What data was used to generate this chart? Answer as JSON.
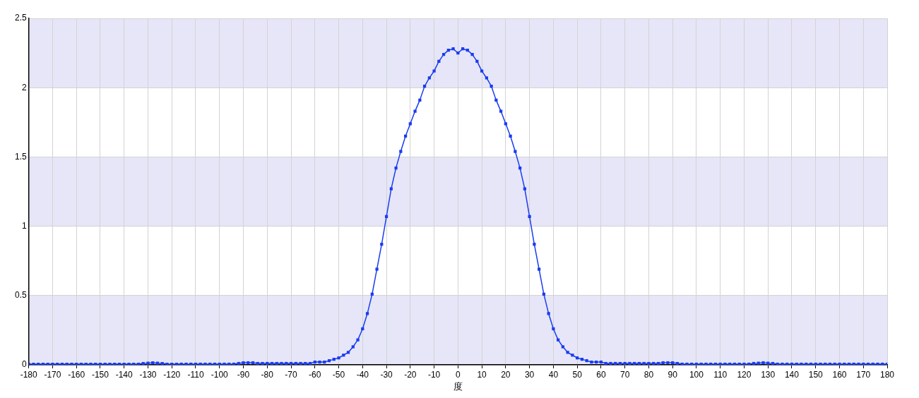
{
  "chart_data": {
    "type": "line",
    "xlabel": "度",
    "x": [
      -180,
      -178,
      -176,
      -174,
      -172,
      -170,
      -168,
      -166,
      -164,
      -162,
      -160,
      -158,
      -156,
      -154,
      -152,
      -150,
      -148,
      -146,
      -144,
      -142,
      -140,
      -138,
      -136,
      -134,
      -132,
      -130,
      -128,
      -126,
      -124,
      -122,
      -120,
      -118,
      -116,
      -114,
      -112,
      -110,
      -108,
      -106,
      -104,
      -102,
      -100,
      -98,
      -96,
      -94,
      -92,
      -90,
      -88,
      -86,
      -84,
      -82,
      -80,
      -78,
      -76,
      -74,
      -72,
      -70,
      -68,
      -66,
      -64,
      -62,
      -60,
      -58,
      -56,
      -54,
      -52,
      -50,
      -48,
      -46,
      -44,
      -42,
      -40,
      -38,
      -36,
      -34,
      -32,
      -30,
      -28,
      -26,
      -24,
      -22,
      -20,
      -18,
      -16,
      -14,
      -12,
      -10,
      -8,
      -6,
      -4,
      -2,
      0,
      2,
      4,
      6,
      8,
      10,
      12,
      14,
      16,
      18,
      20,
      22,
      24,
      26,
      28,
      30,
      32,
      34,
      36,
      38,
      40,
      42,
      44,
      46,
      48,
      50,
      52,
      54,
      56,
      58,
      60,
      62,
      64,
      66,
      68,
      70,
      72,
      74,
      76,
      78,
      80,
      82,
      84,
      86,
      88,
      90,
      92,
      94,
      96,
      98,
      100,
      102,
      104,
      106,
      108,
      110,
      112,
      114,
      116,
      118,
      120,
      122,
      124,
      126,
      128,
      130,
      132,
      134,
      136,
      138,
      140,
      142,
      144,
      146,
      148,
      150,
      152,
      154,
      156,
      158,
      160,
      162,
      164,
      166,
      168,
      170,
      172,
      174,
      176,
      178,
      180
    ],
    "series": [
      {
        "color": "#1a3cf0",
        "values": [
          0.005,
          0.005,
          0.005,
          0.005,
          0.005,
          0.005,
          0.005,
          0.005,
          0.005,
          0.005,
          0.005,
          0.005,
          0.005,
          0.005,
          0.005,
          0.005,
          0.005,
          0.005,
          0.005,
          0.005,
          0.005,
          0.005,
          0.005,
          0.005,
          0.01,
          0.012,
          0.015,
          0.012,
          0.01,
          0.005,
          0.005,
          0.005,
          0.005,
          0.005,
          0.005,
          0.005,
          0.005,
          0.005,
          0.005,
          0.005,
          0.005,
          0.005,
          0.005,
          0.005,
          0.01,
          0.015,
          0.015,
          0.015,
          0.01,
          0.01,
          0.01,
          0.01,
          0.01,
          0.01,
          0.01,
          0.01,
          0.01,
          0.01,
          0.01,
          0.01,
          0.02,
          0.02,
          0.02,
          0.03,
          0.04,
          0.05,
          0.07,
          0.09,
          0.13,
          0.18,
          0.26,
          0.37,
          0.51,
          0.69,
          0.87,
          1.07,
          1.27,
          1.42,
          1.54,
          1.65,
          1.74,
          1.83,
          1.91,
          2.01,
          2.07,
          2.12,
          2.19,
          2.24,
          2.27,
          2.28,
          2.25,
          2.28,
          2.27,
          2.24,
          2.19,
          2.12,
          2.07,
          2.01,
          1.91,
          1.83,
          1.74,
          1.65,
          1.54,
          1.42,
          1.27,
          1.07,
          0.87,
          0.69,
          0.51,
          0.37,
          0.26,
          0.18,
          0.13,
          0.09,
          0.07,
          0.05,
          0.04,
          0.03,
          0.02,
          0.02,
          0.02,
          0.01,
          0.01,
          0.01,
          0.01,
          0.01,
          0.01,
          0.01,
          0.01,
          0.01,
          0.01,
          0.01,
          0.01,
          0.015,
          0.015,
          0.015,
          0.01,
          0.005,
          0.005,
          0.005,
          0.005,
          0.005,
          0.005,
          0.005,
          0.005,
          0.005,
          0.005,
          0.005,
          0.005,
          0.005,
          0.005,
          0.005,
          0.01,
          0.012,
          0.015,
          0.012,
          0.01,
          0.005,
          0.005,
          0.005,
          0.005,
          0.005,
          0.005,
          0.005,
          0.005,
          0.005,
          0.005,
          0.005,
          0.005,
          0.005,
          0.005,
          0.005,
          0.005,
          0.005,
          0.005,
          0.005,
          0.005,
          0.005,
          0.005,
          0.005,
          0.005
        ]
      }
    ],
    "xlim": [
      -180,
      180
    ],
    "xticks": [
      -180,
      -170,
      -160,
      -150,
      -140,
      -130,
      -120,
      -110,
      -100,
      -90,
      -80,
      -70,
      -60,
      -50,
      -40,
      -30,
      -20,
      -10,
      0,
      10,
      20,
      30,
      40,
      50,
      60,
      70,
      80,
      90,
      100,
      110,
      120,
      130,
      140,
      150,
      160,
      170,
      180
    ],
    "ylim": [
      0,
      2.5
    ],
    "yticks": [
      0,
      0.5,
      1,
      1.5,
      2,
      2.5
    ],
    "bands": [
      {
        "axis": "y",
        "from": 0,
        "to": 0.5,
        "color": "#e6e6f8"
      },
      {
        "axis": "y",
        "from": 1,
        "to": 1.5,
        "color": "#e6e6f8"
      },
      {
        "axis": "y",
        "from": 2,
        "to": 2.5,
        "color": "#e6e6f8"
      }
    ],
    "grid": true,
    "legend": false,
    "marker": "square",
    "line_style": "solid"
  }
}
